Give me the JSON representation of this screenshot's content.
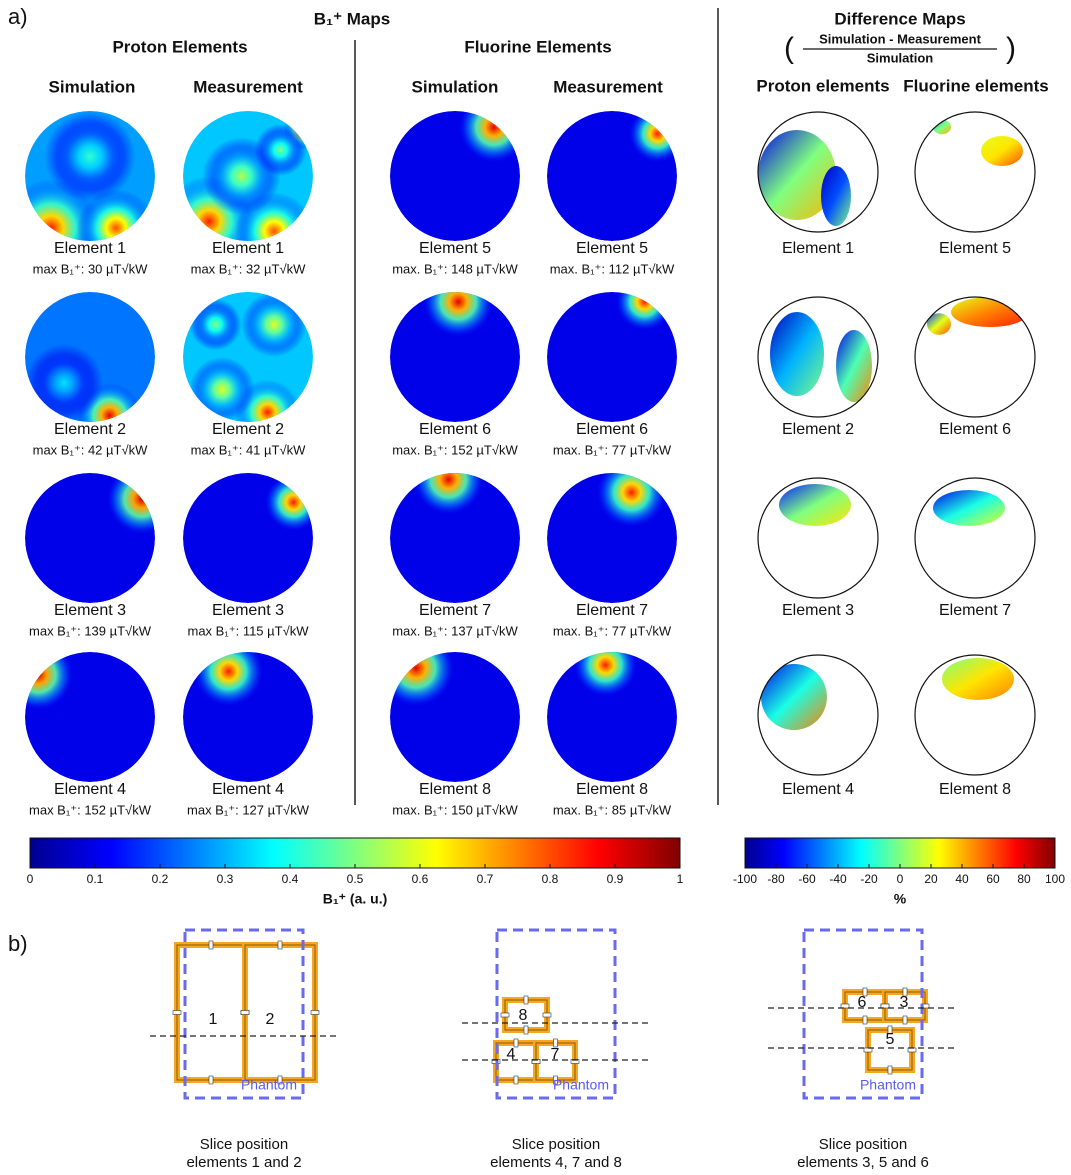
{
  "panel_a": {
    "label": "a)",
    "b1_title": "B₁⁺ Maps",
    "groups": [
      {
        "title": "Proton Elements",
        "columns": [
          "Simulation",
          "Measurement"
        ]
      },
      {
        "title": "Fluorine Elements",
        "columns": [
          "Simulation",
          "Measurement"
        ]
      }
    ],
    "maps": [
      [
        {
          "label": "Element 1",
          "caption": "max B₁⁺: 30 µT√kW"
        },
        {
          "label": "Element 1",
          "caption": "max B₁⁺: 32 µT√kW"
        },
        {
          "label": "Element 5",
          "caption": "max. B₁⁺: 148 µT√kW"
        },
        {
          "label": "Element 5",
          "caption": "max. B₁⁺: 112 µT√kW"
        }
      ],
      [
        {
          "label": "Element 2",
          "caption": "max B₁⁺: 42 µT√kW"
        },
        {
          "label": "Element 2",
          "caption": "max B₁⁺: 41 µT√kW"
        },
        {
          "label": "Element 6",
          "caption": "max. B₁⁺: 152 µT√kW"
        },
        {
          "label": "Element 6",
          "caption": "max. B₁⁺: 77 µT√kW"
        }
      ],
      [
        {
          "label": "Element 3",
          "caption": "max B₁⁺: 139 µT√kW"
        },
        {
          "label": "Element 3",
          "caption": "max B₁⁺: 115 µT√kW"
        },
        {
          "label": "Element 7",
          "caption": "max. B₁⁺: 137 µT√kW"
        },
        {
          "label": "Element 7",
          "caption": "max. B₁⁺: 77 µT√kW"
        }
      ],
      [
        {
          "label": "Element 4",
          "caption": "max B₁⁺: 152 µT√kW"
        },
        {
          "label": "Element 4",
          "caption": "max B₁⁺: 127 µT√kW"
        },
        {
          "label": "Element 8",
          "caption": "max. B₁⁺: 150 µT√kW"
        },
        {
          "label": "Element 8",
          "caption": "max. B₁⁺: 85 µT√kW"
        }
      ]
    ],
    "difference": {
      "title": "Difference Maps",
      "numerator": "Simulation - Measurement",
      "denominator": "Simulation",
      "columns": [
        "Proton elements",
        "Fluorine elements"
      ],
      "labels": [
        [
          "Element 1",
          "Element 5"
        ],
        [
          "Element 2",
          "Element 6"
        ],
        [
          "Element 3",
          "Element 7"
        ],
        [
          "Element 4",
          "Element 8"
        ]
      ]
    },
    "colorbars": [
      {
        "lim": [
          0,
          1
        ],
        "ticks": [
          0,
          0.1,
          0.2,
          0.3,
          0.4,
          0.5,
          0.6,
          0.7,
          0.8,
          0.9,
          1
        ],
        "label": "B₁⁺ (a. u.)"
      },
      {
        "lim": [
          -100,
          100
        ],
        "ticks": [
          -100,
          -80,
          -60,
          -40,
          -20,
          0,
          20,
          40,
          60,
          80,
          100
        ],
        "label": "%"
      }
    ]
  },
  "panel_b": {
    "label": "b)",
    "diagrams": [
      {
        "numbers": [
          "1",
          "2"
        ],
        "phantom": "Phantom",
        "caption": [
          "Slice position",
          "elements 1 and 2"
        ]
      },
      {
        "numbers": [
          "8",
          "4",
          "7"
        ],
        "phantom": "Phantom",
        "caption": [
          "Slice position",
          "elements 4, 7 and 8"
        ]
      },
      {
        "numbers": [
          "6",
          "3",
          "5"
        ],
        "phantom": "Phantom",
        "caption": [
          "Slice position",
          "elements 3, 5 and 6"
        ]
      }
    ]
  }
}
